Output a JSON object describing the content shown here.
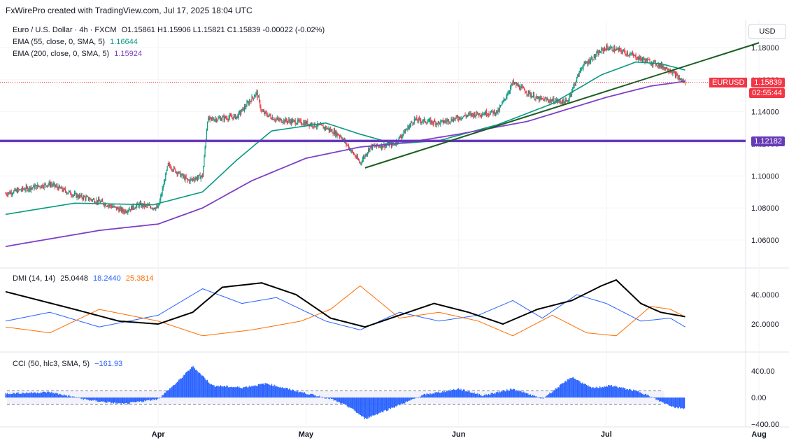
{
  "header": "FxWirePro created with TradingView.com, Jul 17, 2025 18:04 UTC",
  "main": {
    "symbol": "Euro / U.S. Dollar · 4h · FXCM",
    "ohlc": "O1.15861 H1.15906 L1.15821 C1.15839 -0.00022 (-0.02%)",
    "ema55_label": "EMA (55, close, 0, SMA, 5)",
    "ema55_value": "1.16644",
    "ema200_label": "EMA (200, close, 0, SMA, 5)",
    "ema200_value": "1.15924",
    "currency": "USD",
    "ticker_label": "EURUSD",
    "last_price": "1.15839",
    "countdown": "02:55:44",
    "level_label": "1.12182"
  },
  "dmi": {
    "label": "DMI (14, 14)",
    "adx": "25.0448",
    "plus_di": "18.2440",
    "minus_di": "25.3814"
  },
  "cci": {
    "label": "CCI (50, hlc3, SMA, 5)",
    "value": "−161.93"
  },
  "colors": {
    "ema55": "#089981",
    "ema200": "#7e3fc6",
    "level": "#673ab7",
    "trend": "#1b5e20",
    "up": "#089981",
    "down": "#f23645",
    "adx": "#000000",
    "plus_di": "#2962ff",
    "minus_di": "#ff6d00",
    "cci": "#2962ff",
    "price_tag": "#f23645"
  },
  "chart_data": [
    {
      "type": "candlestick",
      "title": "Euro / U.S. Dollar · 4h · FXCM",
      "x_ticks": [
        "Apr",
        "May",
        "Jun",
        "Jul",
        "Aug"
      ],
      "y_ticks": [
        "1.18000",
        "1.16000",
        "1.14000",
        "1.12000",
        "1.10000",
        "1.08000",
        "1.06000"
      ],
      "ylim": [
        1.046,
        1.19
      ],
      "anchor_prices": [
        [
          "Mar 1",
          1.089
        ],
        [
          "Mar 5",
          1.092
        ],
        [
          "Mar 10",
          1.095
        ],
        [
          "Mar 15",
          1.088
        ],
        [
          "Mar 20",
          1.084
        ],
        [
          "Mar 25",
          1.078
        ],
        [
          "Mar 28",
          1.082
        ],
        [
          "Apr 1",
          1.08
        ],
        [
          "Apr 3",
          1.107
        ],
        [
          "Apr 7",
          1.097
        ],
        [
          "Apr 10",
          1.1
        ],
        [
          "Apr 11",
          1.135
        ],
        [
          "Apr 14",
          1.136
        ],
        [
          "Apr 17",
          1.137
        ],
        [
          "Apr 21",
          1.152
        ],
        [
          "Apr 22",
          1.14
        ],
        [
          "Apr 25",
          1.135
        ],
        [
          "May 1",
          1.133
        ],
        [
          "May 5",
          1.13
        ],
        [
          "May 8",
          1.125
        ],
        [
          "May 12",
          1.108
        ],
        [
          "May 14",
          1.118
        ],
        [
          "May 19",
          1.12
        ],
        [
          "May 23",
          1.135
        ],
        [
          "May 28",
          1.133
        ],
        [
          "Jun 3",
          1.138
        ],
        [
          "Jun 9",
          1.14
        ],
        [
          "Jun 12",
          1.158
        ],
        [
          "Jun 17",
          1.148
        ],
        [
          "Jun 23",
          1.146
        ],
        [
          "Jun 26",
          1.168
        ],
        [
          "Jun 30",
          1.178
        ],
        [
          "Jul 1",
          1.18
        ],
        [
          "Jul 4",
          1.178
        ],
        [
          "Jul 8",
          1.173
        ],
        [
          "Jul 11",
          1.17
        ],
        [
          "Jul 14",
          1.166
        ],
        [
          "Jul 16",
          1.16
        ],
        [
          "Jul 17",
          1.158
        ]
      ],
      "series": [
        {
          "name": "EMA (55, close, 0, SMA, 5)",
          "points": [
            [
              "Mar 1",
              1.076
            ],
            [
              "Mar 15",
              1.083
            ],
            [
              "Mar 31",
              1.082
            ],
            [
              "Apr 10",
              1.09
            ],
            [
              "Apr 17",
              1.11
            ],
            [
              "Apr 24",
              1.128
            ],
            [
              "May 5",
              1.133
            ],
            [
              "May 12",
              1.126
            ],
            [
              "May 19",
              1.12
            ],
            [
              "May 28",
              1.122
            ],
            [
              "Jun 9",
              1.132
            ],
            [
              "Jun 20",
              1.145
            ],
            [
              "Jun 30",
              1.163
            ],
            [
              "Jul 7",
              1.171
            ],
            [
              "Jul 12",
              1.17
            ],
            [
              "Jul 17",
              1.166
            ]
          ]
        },
        {
          "name": "EMA (200, close, 0, SMA, 5)",
          "points": [
            [
              "Mar 1",
              1.056
            ],
            [
              "Mar 20",
              1.066
            ],
            [
              "Apr 1",
              1.07
            ],
            [
              "Apr 10",
              1.08
            ],
            [
              "Apr 20",
              1.097
            ],
            [
              "May 1",
              1.111
            ],
            [
              "May 12",
              1.118
            ],
            [
              "May 22",
              1.121
            ],
            [
              "Jun 1",
              1.126
            ],
            [
              "Jun 15",
              1.134
            ],
            [
              "Jul 1",
              1.149
            ],
            [
              "Jul 10",
              1.156
            ],
            [
              "Jul 17",
              1.159
            ]
          ]
        }
      ],
      "horizontal_level": 1.12182,
      "trendline": [
        [
          "May 13",
          1.105
        ],
        [
          "Aug 1",
          1.183
        ]
      ]
    },
    {
      "type": "line",
      "title": "DMI (14, 14)",
      "y_ticks": [
        "40.0000",
        "20.0000"
      ],
      "ylim": [
        8,
        52
      ],
      "series": [
        {
          "name": "ADX",
          "points": [
            [
              "Mar 1",
              42
            ],
            [
              "Mar 8",
              36
            ],
            [
              "Mar 15",
              30
            ],
            [
              "Mar 24",
              22
            ],
            [
              "Apr 1",
              20
            ],
            [
              "Apr 8",
              28
            ],
            [
              "Apr 14",
              45
            ],
            [
              "Apr 22",
              48
            ],
            [
              "Apr 29",
              40
            ],
            [
              "May 6",
              24
            ],
            [
              "May 13",
              18
            ],
            [
              "May 20",
              26
            ],
            [
              "May 27",
              34
            ],
            [
              "Jun 3",
              28
            ],
            [
              "Jun 10",
              20
            ],
            [
              "Jun 17",
              30
            ],
            [
              "Jun 24",
              36
            ],
            [
              "Jun 30",
              46
            ],
            [
              "Jul 3",
              50
            ],
            [
              "Jul 8",
              34
            ],
            [
              "Jul 12",
              28
            ],
            [
              "Jul 17",
              25
            ]
          ]
        },
        {
          "name": "+DI",
          "points": [
            [
              "Mar 1",
              22
            ],
            [
              "Mar 10",
              28
            ],
            [
              "Mar 20",
              18
            ],
            [
              "Apr 1",
              26
            ],
            [
              "Apr 10",
              44
            ],
            [
              "Apr 18",
              34
            ],
            [
              "Apr 25",
              38
            ],
            [
              "May 5",
              22
            ],
            [
              "May 12",
              16
            ],
            [
              "May 20",
              28
            ],
            [
              "May 28",
              22
            ],
            [
              "Jun 5",
              26
            ],
            [
              "Jun 12",
              36
            ],
            [
              "Jun 18",
              24
            ],
            [
              "Jun 25",
              40
            ],
            [
              "Jul 1",
              34
            ],
            [
              "Jul 8",
              22
            ],
            [
              "Jul 14",
              24
            ],
            [
              "Jul 17",
              18
            ]
          ]
        },
        {
          "name": "−DI",
          "points": [
            [
              "Mar 1",
              18
            ],
            [
              "Mar 10",
              14
            ],
            [
              "Mar 20",
              30
            ],
            [
              "Apr 1",
              22
            ],
            [
              "Apr 10",
              12
            ],
            [
              "Apr 20",
              16
            ],
            [
              "Apr 30",
              22
            ],
            [
              "May 6",
              30
            ],
            [
              "May 12",
              46
            ],
            [
              "May 20",
              24
            ],
            [
              "May 28",
              28
            ],
            [
              "Jun 5",
              22
            ],
            [
              "Jun 12",
              12
            ],
            [
              "Jun 20",
              26
            ],
            [
              "Jun 27",
              14
            ],
            [
              "Jul 3",
              12
            ],
            [
              "Jul 10",
              32
            ],
            [
              "Jul 14",
              30
            ],
            [
              "Jul 17",
              25
            ]
          ]
        }
      ]
    },
    {
      "type": "area",
      "title": "CCI (50, hlc3, SMA, 5)",
      "y_ticks": [
        "400.00",
        "0.00",
        "−400.00"
      ],
      "ylim": [
        -430,
        430
      ],
      "bands": [
        100,
        -100
      ],
      "series": [
        {
          "name": "CCI",
          "points": [
            [
              "Mar 1",
              60
            ],
            [
              "Mar 10",
              80
            ],
            [
              "Mar 18",
              -40
            ],
            [
              "Mar 25",
              -100
            ],
            [
              "Apr 1",
              -20
            ],
            [
              "Apr 5",
              240
            ],
            [
              "Apr 8",
              470
            ],
            [
              "Apr 12",
              180
            ],
            [
              "Apr 18",
              150
            ],
            [
              "Apr 23",
              210
            ],
            [
              "Apr 30",
              80
            ],
            [
              "May 6",
              -20
            ],
            [
              "May 10",
              -150
            ],
            [
              "May 13",
              -320
            ],
            [
              "May 19",
              -140
            ],
            [
              "May 25",
              40
            ],
            [
              "Jun 1",
              130
            ],
            [
              "Jun 6",
              30
            ],
            [
              "Jun 12",
              130
            ],
            [
              "Jun 18",
              -20
            ],
            [
              "Jun 24",
              310
            ],
            [
              "Jun 28",
              140
            ],
            [
              "Jul 2",
              180
            ],
            [
              "Jul 8",
              80
            ],
            [
              "Jul 12",
              -60
            ],
            [
              "Jul 15",
              -150
            ],
            [
              "Jul 17",
              -162
            ]
          ]
        }
      ]
    }
  ]
}
